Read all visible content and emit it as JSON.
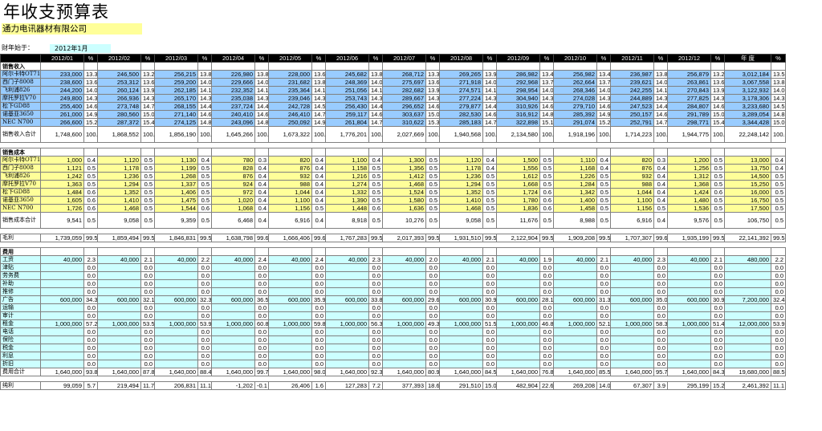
{
  "title": "年收支预算表",
  "company": "通力电讯器材有限公司",
  "fiscal_label": "财年始于：",
  "fiscal_start": "2012年1月",
  "header": [
    "2012/01",
    "%",
    "2012/02",
    "%",
    "2012/03",
    "%",
    "2012/04",
    "%",
    "2012/05",
    "%",
    "2012/06",
    "%",
    "2012/07",
    "%",
    "2012/08",
    "%",
    "2012/09",
    "%",
    "2012/10",
    "%",
    "2012/11",
    "%",
    "2012/12",
    "%",
    "年  度",
    "%"
  ],
  "sections": [
    {
      "title": "销售收入",
      "rows": [
        {
          "label": "阿尔卡特OT715",
          "fill": "blue",
          "v": [
            "233,000",
            "13.3",
            "246,500",
            "13.2",
            "256,215",
            "13.8",
            "226,980",
            "13.8",
            "228,000",
            "13.6",
            "245,682",
            "13.8",
            "268,712",
            "13.3",
            "269,265",
            "13.9",
            "286,982",
            "13.4",
            "256,982",
            "13.4",
            "236,987",
            "13.8",
            "256,879",
            "13.2",
            "3,012,184",
            "13.5"
          ]
        },
        {
          "label": "西门子8008",
          "fill": "blue",
          "v": [
            "238,600",
            "13.6",
            "253,312",
            "13.6",
            "259,200",
            "14.0",
            "229,666",
            "14.0",
            "231,682",
            "13.8",
            "248,369",
            "14.0",
            "275,697",
            "13.6",
            "271,918",
            "14.0",
            "292,968",
            "13.7",
            "262,664",
            "13.7",
            "239,621",
            "14.0",
            "263,861",
            "13.6",
            "3,067,558",
            "13.8"
          ]
        },
        {
          "label": "飞利浦826",
          "fill": "blue",
          "v": [
            "244,200",
            "14.0",
            "260,124",
            "13.9",
            "262,185",
            "14.1",
            "232,352",
            "14.1",
            "235,364",
            "14.1",
            "251,056",
            "14.1",
            "282,682",
            "13.9",
            "274,571",
            "14.1",
            "298,954",
            "14.0",
            "268,346",
            "14.0",
            "242,255",
            "14.1",
            "270,843",
            "13.9",
            "3,122,932",
            "14.0"
          ]
        },
        {
          "label": "摩托罗拉V70",
          "fill": "blue",
          "v": [
            "249,800",
            "14.3",
            "266,936",
            "14.3",
            "265,170",
            "14.3",
            "235,038",
            "14.3",
            "239,046",
            "14.3",
            "253,743",
            "14.3",
            "289,667",
            "14.3",
            "277,224",
            "14.3",
            "304,940",
            "14.3",
            "274,028",
            "14.3",
            "244,889",
            "14.3",
            "277,825",
            "14.3",
            "3,178,306",
            "14.3"
          ]
        },
        {
          "label": "松下GD88",
          "fill": "blue",
          "v": [
            "255,400",
            "14.6",
            "273,748",
            "14.7",
            "268,155",
            "14.4",
            "237,724",
            "14.4",
            "242,728",
            "14.5",
            "256,430",
            "14.4",
            "296,652",
            "14.6",
            "279,877",
            "14.4",
            "310,926",
            "14.6",
            "279,710",
            "14.6",
            "247,523",
            "14.4",
            "284,807",
            "14.6",
            "3,233,680",
            "14.5"
          ]
        },
        {
          "label": "诺基亚3650",
          "fill": "blue",
          "v": [
            "261,000",
            "14.9",
            "280,560",
            "15.0",
            "271,140",
            "14.6",
            "240,410",
            "14.6",
            "246,410",
            "14.7",
            "259,117",
            "14.6",
            "303,637",
            "15.0",
            "282,530",
            "14.6",
            "316,912",
            "14.8",
            "285,392",
            "14.9",
            "250,157",
            "14.6",
            "291,789",
            "15.0",
            "3,289,054",
            "14.8"
          ]
        },
        {
          "label": "NEC N700",
          "fill": "blue",
          "v": [
            "266,600",
            "15.2",
            "287,372",
            "15.4",
            "274,125",
            "14.8",
            "243,096",
            "14.8",
            "250,092",
            "14.9",
            "261,804",
            "14.7",
            "310,622",
            "15.3",
            "285,183",
            "14.7",
            "322,898",
            "15.1",
            "291,074",
            "15.2",
            "252,791",
            "14.7",
            "298,771",
            "15.4",
            "3,344,428",
            "15.0"
          ]
        }
      ],
      "total": {
        "label": "销售收入合计",
        "v": [
          "1,748,600",
          "100.0",
          "1,868,552",
          "100.0",
          "1,856,190",
          "100.0",
          "1,645,266",
          "100.0",
          "1,673,322",
          "100.0",
          "1,776,201",
          "100.0",
          "2,027,669",
          "100.0",
          "1,940,568",
          "100.0",
          "2,134,580",
          "100.0",
          "1,918,196",
          "100.0",
          "1,714,223",
          "100.0",
          "1,944,775",
          "100.0",
          "22,248,142",
          "100.0"
        ]
      }
    },
    {
      "title": "销售成本",
      "rows": [
        {
          "label": "阿尔卡特OT715",
          "fill": "yel",
          "v": [
            "1,000",
            "0.4",
            "1,120",
            "0.5",
            "1,130",
            "0.4",
            "780",
            "0.3",
            "820",
            "0.4",
            "1,100",
            "0.4",
            "1,300",
            "0.5",
            "1,120",
            "0.4",
            "1,500",
            "0.5",
            "1,110",
            "0.4",
            "820",
            "0.3",
            "1,200",
            "0.5",
            "13,000",
            "0.4"
          ]
        },
        {
          "label": "西门子8008",
          "fill": "yel",
          "v": [
            "1,121",
            "0.5",
            "1,178",
            "0.5",
            "1,199",
            "0.5",
            "828",
            "0.4",
            "876",
            "0.4",
            "1,158",
            "0.5",
            "1,356",
            "0.5",
            "1,178",
            "0.4",
            "1,556",
            "0.5",
            "1,168",
            "0.4",
            "876",
            "0.4",
            "1,256",
            "0.5",
            "13,750",
            "0.4"
          ]
        },
        {
          "label": "飞利浦826",
          "fill": "yel",
          "v": [
            "1,242",
            "0.5",
            "1,236",
            "0.5",
            "1,268",
            "0.5",
            "876",
            "0.4",
            "932",
            "0.4",
            "1,216",
            "0.5",
            "1,412",
            "0.5",
            "1,236",
            "0.5",
            "1,612",
            "0.5",
            "1,226",
            "0.5",
            "932",
            "0.4",
            "1,312",
            "0.5",
            "14,500",
            "0.5"
          ]
        },
        {
          "label": "摩托罗拉V70",
          "fill": "yel",
          "v": [
            "1,363",
            "0.5",
            "1,294",
            "0.5",
            "1,337",
            "0.5",
            "924",
            "0.4",
            "988",
            "0.4",
            "1,274",
            "0.5",
            "1,468",
            "0.5",
            "1,294",
            "0.5",
            "1,668",
            "0.5",
            "1,284",
            "0.5",
            "988",
            "0.4",
            "1,368",
            "0.5",
            "15,250",
            "0.5"
          ]
        },
        {
          "label": "松下GD88",
          "fill": "yel",
          "v": [
            "1,484",
            "0.6",
            "1,352",
            "0.5",
            "1,406",
            "0.5",
            "972",
            "0.4",
            "1,044",
            "0.4",
            "1,332",
            "0.5",
            "1,524",
            "0.5",
            "1,352",
            "0.5",
            "1,724",
            "0.6",
            "1,342",
            "0.5",
            "1,044",
            "0.4",
            "1,424",
            "0.6",
            "16,000",
            "0.5"
          ]
        },
        {
          "label": "诺基亚3650",
          "fill": "yel",
          "v": [
            "1,605",
            "0.6",
            "1,410",
            "0.5",
            "1,475",
            "0.5",
            "1,020",
            "0.4",
            "1,100",
            "0.4",
            "1,390",
            "0.5",
            "1,580",
            "0.5",
            "1,410",
            "0.5",
            "1,780",
            "0.6",
            "1,400",
            "0.5",
            "1,100",
            "0.4",
            "1,480",
            "0.5",
            "16,750",
            "0.5"
          ]
        },
        {
          "label": "NEC N700",
          "fill": "yel",
          "v": [
            "1,726",
            "0.6",
            "1,468",
            "0.5",
            "1,544",
            "0.6",
            "1,068",
            "0.4",
            "1,156",
            "0.5",
            "1,448",
            "0.6",
            "1,636",
            "0.5",
            "1,468",
            "0.5",
            "1,836",
            "0.6",
            "1,458",
            "0.5",
            "1,156",
            "0.5",
            "1,536",
            "0.5",
            "17,500",
            "0.5"
          ]
        }
      ],
      "total": {
        "label": "销售成本合计",
        "v": [
          "9,541",
          "0.5",
          "9,058",
          "0.5",
          "9,359",
          "0.5",
          "6,468",
          "0.4",
          "6,916",
          "0.4",
          "8,918",
          "0.5",
          "10,276",
          "0.5",
          "9,058",
          "0.5",
          "11,676",
          "0.5",
          "8,988",
          "0.5",
          "6,916",
          "0.4",
          "9,576",
          "0.5",
          "106,750",
          "0.5"
        ]
      }
    }
  ],
  "gross": {
    "label": "毛利",
    "v": [
      "1,739,059",
      "99.5",
      "1,859,494",
      "99.5",
      "1,846,831",
      "99.5",
      "1,638,798",
      "99.6",
      "1,666,406",
      "99.6",
      "1,767,283",
      "99.5",
      "2,017,393",
      "99.5",
      "1,931,510",
      "99.5",
      "2,122,904",
      "99.5",
      "1,909,208",
      "99.5",
      "1,707,307",
      "99.6",
      "1,935,199",
      "99.5",
      "22,141,392",
      "99.5"
    ]
  },
  "expenses": {
    "title": "费用",
    "rows": [
      {
        "label": "工资",
        "v": [
          "40,000",
          "2.3",
          "40,000",
          "2.1",
          "40,000",
          "2.2",
          "40,000",
          "2.4",
          "40,000",
          "2.4",
          "40,000",
          "2.3",
          "40,000",
          "2.0",
          "40,000",
          "2.1",
          "40,000",
          "1.9",
          "40,000",
          "2.1",
          "40,000",
          "2.3",
          "40,000",
          "2.1",
          "480,000",
          "2.2"
        ]
      },
      {
        "label": "津贴",
        "v": [
          "",
          "0.0",
          "",
          "0.0",
          "",
          "0.0",
          "",
          "0.0",
          "",
          "0.0",
          "",
          "0.0",
          "",
          "0.0",
          "",
          "0.0",
          "",
          "0.0",
          "",
          "0.0",
          "",
          "0.0",
          "",
          "0.0",
          "",
          "0.0"
        ]
      },
      {
        "label": "劳务费",
        "v": [
          "",
          "0.0",
          "",
          "0.0",
          "",
          "0.0",
          "",
          "0.0",
          "",
          "0.0",
          "",
          "0.0",
          "",
          "0.0",
          "",
          "0.0",
          "",
          "0.0",
          "",
          "0.0",
          "",
          "0.0",
          "",
          "0.0",
          "",
          "0.0"
        ]
      },
      {
        "label": "补助",
        "v": [
          "",
          "0.0",
          "",
          "0.0",
          "",
          "0.0",
          "",
          "0.0",
          "",
          "0.0",
          "",
          "0.0",
          "",
          "0.0",
          "",
          "0.0",
          "",
          "0.0",
          "",
          "0.0",
          "",
          "0.0",
          "",
          "0.0",
          "",
          "0.0"
        ]
      },
      {
        "label": "推修",
        "v": [
          "",
          "0.0",
          "",
          "0.0",
          "",
          "0.0",
          "",
          "0.0",
          "",
          "0.0",
          "",
          "0.0",
          "",
          "0.0",
          "",
          "0.0",
          "",
          "0.0",
          "",
          "0.0",
          "",
          "0.0",
          "",
          "0.0",
          "",
          "0.0"
        ]
      },
      {
        "label": "广告",
        "v": [
          "600,000",
          "34.3",
          "600,000",
          "32.1",
          "600,000",
          "32.3",
          "600,000",
          "36.5",
          "600,000",
          "35.9",
          "600,000",
          "33.8",
          "600,000",
          "29.6",
          "600,000",
          "30.9",
          "600,000",
          "28.1",
          "600,000",
          "31.3",
          "600,000",
          "35.0",
          "600,000",
          "30.9",
          "7,200,000",
          "32.4"
        ]
      },
      {
        "label": "运输",
        "v": [
          "",
          "0.0",
          "",
          "0.0",
          "",
          "0.0",
          "",
          "0.0",
          "",
          "0.0",
          "",
          "0.0",
          "",
          "0.0",
          "",
          "0.0",
          "",
          "0.0",
          "",
          "0.0",
          "",
          "0.0",
          "",
          "0.0",
          "",
          "0.0"
        ]
      },
      {
        "label": "审计",
        "v": [
          "",
          "0.0",
          "",
          "0.0",
          "",
          "0.0",
          "",
          "0.0",
          "",
          "0.0",
          "",
          "0.0",
          "",
          "0.0",
          "",
          "0.0",
          "",
          "0.0",
          "",
          "0.0",
          "",
          "0.0",
          "",
          "0.0",
          "",
          "0.0"
        ]
      },
      {
        "label": "租金",
        "v": [
          "1,000,000",
          "57.2",
          "1,000,000",
          "53.5",
          "1,000,000",
          "53.9",
          "1,000,000",
          "60.8",
          "1,000,000",
          "59.8",
          "1,000,000",
          "56.3",
          "1,000,000",
          "49.3",
          "1,000,000",
          "51.5",
          "1,000,000",
          "46.8",
          "1,000,000",
          "52.1",
          "1,000,000",
          "58.3",
          "1,000,000",
          "51.4",
          "12,000,000",
          "53.9"
        ]
      },
      {
        "label": "电话",
        "v": [
          "",
          "0.0",
          "",
          "0.0",
          "",
          "0.0",
          "",
          "0.0",
          "",
          "0.0",
          "",
          "0.0",
          "",
          "0.0",
          "",
          "0.0",
          "",
          "0.0",
          "",
          "0.0",
          "",
          "0.0",
          "",
          "0.0",
          "",
          "0.0"
        ]
      },
      {
        "label": "保险",
        "v": [
          "",
          "0.0",
          "",
          "0.0",
          "",
          "0.0",
          "",
          "0.0",
          "",
          "0.0",
          "",
          "0.0",
          "",
          "0.0",
          "",
          "0.0",
          "",
          "0.0",
          "",
          "0.0",
          "",
          "0.0",
          "",
          "0.0",
          "",
          "0.0"
        ]
      },
      {
        "label": "税金",
        "v": [
          "",
          "0.0",
          "",
          "0.0",
          "",
          "0.0",
          "",
          "0.0",
          "",
          "0.0",
          "",
          "0.0",
          "",
          "0.0",
          "",
          "0.0",
          "",
          "0.0",
          "",
          "0.0",
          "",
          "0.0",
          "",
          "0.0",
          "",
          "0.0"
        ]
      },
      {
        "label": "利息",
        "v": [
          "",
          "0.0",
          "",
          "0.0",
          "",
          "0.0",
          "",
          "0.0",
          "",
          "0.0",
          "",
          "0.0",
          "",
          "0.0",
          "",
          "0.0",
          "",
          "0.0",
          "",
          "0.0",
          "",
          "0.0",
          "",
          "0.0",
          "",
          "0.0"
        ]
      },
      {
        "label": "折旧",
        "v": [
          "",
          "0.0",
          "",
          "0.0",
          "",
          "0.0",
          "",
          "0.0",
          "",
          "0.0",
          "",
          "0.0",
          "",
          "0.0",
          "",
          "0.0",
          "",
          "0.0",
          "",
          "0.0",
          "",
          "0.0",
          "",
          "0.0",
          "",
          "0.0"
        ]
      }
    ],
    "total": {
      "label": "费用合计",
      "v": [
        "1,640,000",
        "93.8",
        "1,640,000",
        "87.8",
        "1,640,000",
        "88.4",
        "1,640,000",
        "99.7",
        "1,640,000",
        "98.0",
        "1,640,000",
        "92.3",
        "1,640,000",
        "80.9",
        "1,640,000",
        "84.5",
        "1,640,000",
        "76.8",
        "1,640,000",
        "85.5",
        "1,640,000",
        "95.7",
        "1,640,000",
        "84.3",
        "19,680,000",
        "88.5"
      ]
    }
  },
  "net": {
    "label": "纯利",
    "v": [
      "99,059",
      "5.7",
      "219,494",
      "11.7",
      "206,831",
      "11.1",
      "-1,202",
      "-0.1",
      "26,406",
      "1.6",
      "127,283",
      "7.2",
      "377,393",
      "18.6",
      "291,510",
      "15.0",
      "482,904",
      "22.6",
      "269,208",
      "14.0",
      "67,307",
      "3.9",
      "295,199",
      "15.2",
      "2,461,392",
      "11.1"
    ]
  },
  "colors": {
    "income_fill": "#99ccff",
    "cost_fill": "#ffff99",
    "expense_fill": "#ccffff",
    "company_fill": "#ffff99",
    "header_bg": "#000000"
  }
}
